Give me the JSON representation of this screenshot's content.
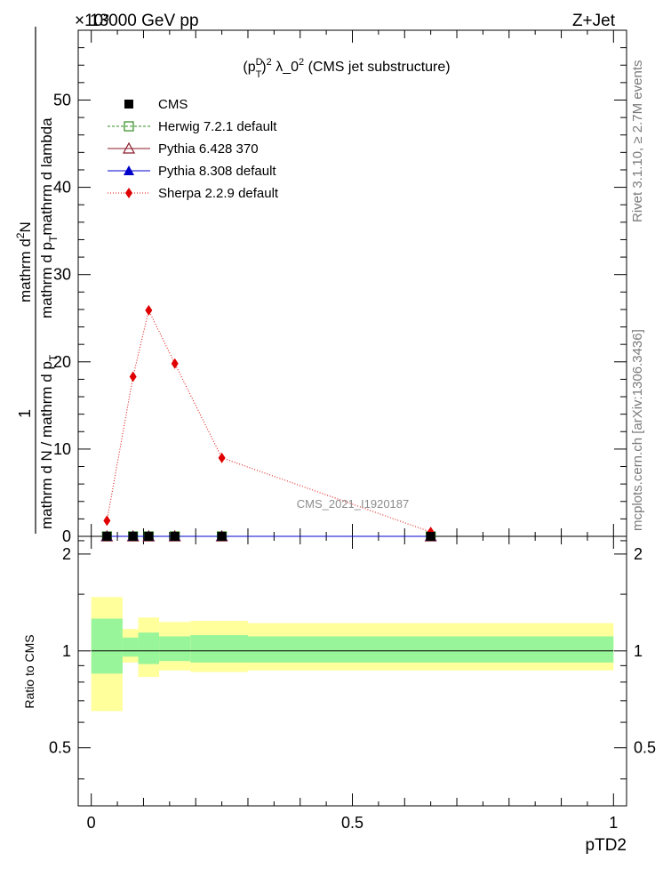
{
  "header": {
    "left_title": "13000 GeV pp",
    "right_title": "Z+Jet",
    "exponent_label": "×10³"
  },
  "side_labels": {
    "rivet": "Rivet 3.1.10, ≥ 2.7M events",
    "mcplots": "mcplots.cern.ch [arXiv:1306.3436]"
  },
  "colors": {
    "cms": "#000000",
    "herwig": "#2e8b1e",
    "pythia6": "#8b1a2a",
    "pythia8": "#0000cc",
    "sherpa": "#e00000",
    "band_outer": "#ffff9c",
    "band_inner": "#99f59a"
  },
  "chart_data": [
    {
      "type": "line",
      "title": "(p_T^D)^2 λ_0^2 (CMS jet substructure)",
      "title_parts": {
        "base": "(p",
        "sup1": "D",
        "sub1": "T",
        "sup2": "2",
        "mid": " λ_0",
        "sup3": "2",
        "tail": " (CMS jet substructure)"
      },
      "ylabel": "1 / mathrm d N / mathrm d p_T · mathrm d²N / mathrm d p_T mathrm d lambda",
      "ylabel_parts": {
        "num": "1",
        "den_a": "mathrm d N / mathrm d p",
        "den_sub": "T",
        "num2_a": "mathrm d",
        "num2_sup": "2",
        "num2_b": "N",
        "den2_a": "mathrm d p",
        "den2_sub": "T",
        "den2_b": "mathrm d lambda"
      },
      "xlim": [
        -0.025,
        1.025
      ],
      "ylim": [
        0,
        58000
      ],
      "y_ticks": [
        0,
        10000,
        20000,
        30000,
        40000,
        50000
      ],
      "y_tick_labels": [
        "0",
        "10",
        "20",
        "30",
        "40",
        "50"
      ],
      "annotation": "CMS_2021_I1920187",
      "legend_position": "top-left",
      "series": [
        {
          "name": "CMS",
          "key": "cms",
          "x": [
            0.03,
            0.08,
            0.11,
            0.16,
            0.25,
            0.65
          ],
          "y": [
            0,
            0,
            0,
            0,
            0,
            0
          ]
        },
        {
          "name": "Herwig 7.2.1 default",
          "key": "herwig",
          "x": [
            0.03,
            0.08,
            0.11,
            0.16,
            0.25,
            0.65
          ],
          "y": [
            0,
            0,
            0,
            0,
            0,
            0
          ]
        },
        {
          "name": "Pythia 6.428 370",
          "key": "pythia6",
          "x": [
            0.03,
            0.08,
            0.11,
            0.16,
            0.25,
            0.65
          ],
          "y": [
            0,
            0,
            0,
            0,
            0,
            0
          ]
        },
        {
          "name": "Pythia 8.308 default",
          "key": "pythia8",
          "x": [
            0.03,
            0.08,
            0.11,
            0.16,
            0.25,
            0.65
          ],
          "y": [
            0,
            0,
            0,
            0,
            0,
            0
          ]
        },
        {
          "name": "Sherpa 2.2.9 default",
          "key": "sherpa",
          "x": [
            0.03,
            0.08,
            0.11,
            0.16,
            0.25,
            0.65
          ],
          "y": [
            1800,
            18300,
            25900,
            19800,
            9000,
            500
          ]
        }
      ]
    },
    {
      "type": "area",
      "ylabel": "Ratio to CMS",
      "xlabel": "pTD2",
      "xlim": [
        -0.025,
        1.025
      ],
      "ylim": [
        0.33,
        2.27
      ],
      "y_ticks": [
        0.5,
        1,
        2
      ],
      "y_tick_labels": [
        "0.5",
        "1",
        "2"
      ],
      "x_ticks": [
        0,
        0.5,
        1
      ],
      "x_tick_labels": [
        "0",
        "0.5",
        "1"
      ],
      "bins": [
        {
          "lo": 0.0,
          "hi": 0.06,
          "outer": [
            0.65,
            1.47
          ],
          "inner": [
            0.85,
            1.26
          ]
        },
        {
          "lo": 0.06,
          "hi": 0.09,
          "outer": [
            0.92,
            1.17
          ],
          "inner": [
            0.96,
            1.1
          ]
        },
        {
          "lo": 0.09,
          "hi": 0.13,
          "outer": [
            0.83,
            1.27
          ],
          "inner": [
            0.91,
            1.14
          ]
        },
        {
          "lo": 0.13,
          "hi": 0.19,
          "outer": [
            0.87,
            1.23
          ],
          "inner": [
            0.93,
            1.11
          ]
        },
        {
          "lo": 0.19,
          "hi": 0.3,
          "outer": [
            0.86,
            1.24
          ],
          "inner": [
            0.92,
            1.12
          ]
        },
        {
          "lo": 0.3,
          "hi": 1.0,
          "outer": [
            0.87,
            1.22
          ],
          "inner": [
            0.92,
            1.11
          ]
        }
      ]
    }
  ]
}
